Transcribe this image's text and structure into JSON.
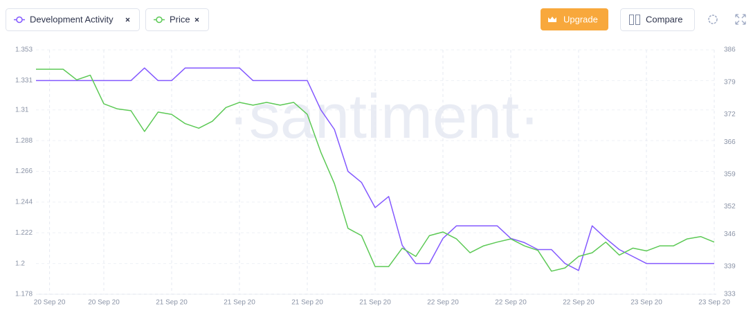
{
  "ui": {
    "upgrade": "Upgrade",
    "compare": "Compare",
    "watermark": "·santiment·"
  },
  "chart_data": {
    "type": "line",
    "categories": [
      null,
      "20 Sep 20",
      null,
      null,
      null,
      "20 Sep 20",
      null,
      null,
      null,
      null,
      "21 Sep 20",
      null,
      null,
      null,
      null,
      "21 Sep 20",
      null,
      null,
      null,
      null,
      "21 Sep 20",
      null,
      null,
      null,
      null,
      "21 Sep 20",
      null,
      null,
      null,
      null,
      "22 Sep 20",
      null,
      null,
      null,
      null,
      "22 Sep 20",
      null,
      null,
      null,
      null,
      "22 Sep 20",
      null,
      null,
      null,
      null,
      "23 Sep 20",
      null,
      null,
      null,
      null,
      "23 Sep 20"
    ],
    "series": [
      {
        "name": "Development Activity",
        "color": "#8358ff",
        "axis": "y",
        "values": [
          1.331,
          1.331,
          1.331,
          1.331,
          1.331,
          1.331,
          1.331,
          1.331,
          1.34,
          1.331,
          1.331,
          1.34,
          1.34,
          1.34,
          1.34,
          1.34,
          1.331,
          1.331,
          1.331,
          1.331,
          1.331,
          1.31,
          1.296,
          1.266,
          1.258,
          1.24,
          1.248,
          1.213,
          1.2,
          1.2,
          1.218,
          1.227,
          1.227,
          1.227,
          1.227,
          1.218,
          1.215,
          1.21,
          1.21,
          1.2,
          1.195,
          1.227,
          1.218,
          1.21,
          1.205,
          1.2,
          1.2,
          1.2,
          1.2,
          1.2,
          1.2
        ]
      },
      {
        "name": "Price",
        "color": "#5cc955",
        "axis": "y2",
        "values": [
          381.8,
          381.8,
          381.8,
          379.5,
          380.5,
          374.3,
          373.2,
          372.8,
          368.3,
          372.5,
          372,
          370,
          369,
          370.5,
          373.5,
          374.6,
          374,
          374.6,
          374,
          374.6,
          372,
          363.8,
          357,
          347.3,
          345.7,
          339,
          339,
          343,
          341.2,
          345.7,
          346.5,
          345,
          342,
          343.5,
          344.3,
          345,
          343.5,
          342.5,
          338,
          338.7,
          341.2,
          342,
          344.3,
          341.5,
          343,
          342.4,
          343.5,
          343.5,
          345,
          345.5,
          344.3
        ]
      }
    ],
    "ylim": [
      1.178,
      1.353
    ],
    "yticks": [
      1.178,
      1.2,
      1.222,
      1.244,
      1.266,
      1.288,
      1.31,
      1.331,
      1.353
    ],
    "y2lim": [
      333,
      386
    ],
    "y2ticks": [
      333,
      339,
      346,
      352,
      359,
      366,
      372,
      379,
      386
    ],
    "grid": true
  }
}
